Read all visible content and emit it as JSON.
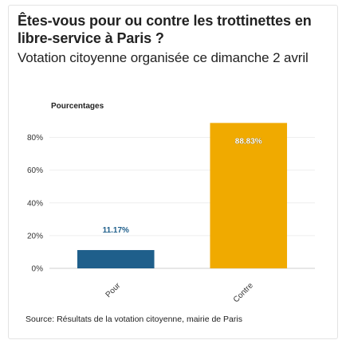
{
  "chart_data": {
    "type": "bar",
    "title": "Êtes-vous pour ou contre les trottinettes en libre-service à Paris ?",
    "subtitle": "Votation citoyenne organisée ce dimanche 2 avril",
    "ylabel": "Pourcentages",
    "xlabel": "",
    "categories": [
      "Pour",
      "Contre"
    ],
    "values": [
      11.17,
      88.83
    ],
    "value_labels": [
      "11.17%",
      "88.83%"
    ],
    "colors": [
      "#1f5f8b",
      "#f0aa00"
    ],
    "ylim": [
      0,
      90
    ],
    "yticks": [
      0,
      20,
      40,
      60,
      80
    ],
    "ytick_labels": [
      "0%",
      "20%",
      "40%",
      "60%",
      "80%"
    ],
    "grid": true,
    "legend": "none"
  },
  "footer": {
    "source": "Source: Résultats de la votation citoyenne, mairie de Paris"
  }
}
